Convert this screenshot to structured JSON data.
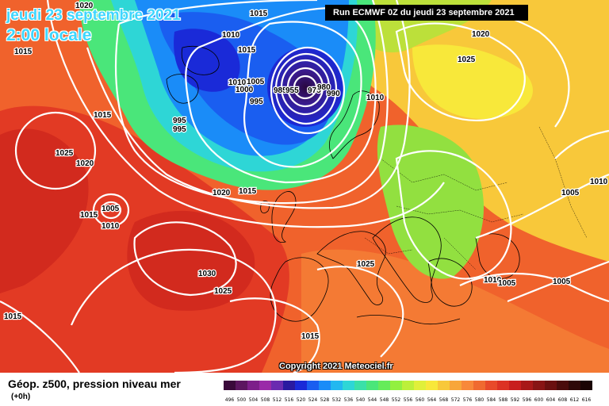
{
  "header": {
    "date": "jeudi 23 septembre 2021",
    "time": "2:00 locale",
    "run": "Run ECMWF 0Z du jeudi 23 septembre 2021"
  },
  "copyright": "Copyright 2021 Meteociel.fr",
  "footer": {
    "title": "Géop. z500, pression niveau mer",
    "subtitle": "(+0h)"
  },
  "scale": {
    "labels": [
      "496",
      "500",
      "504",
      "508",
      "512",
      "516",
      "520",
      "524",
      "528",
      "532",
      "536",
      "540",
      "544",
      "548",
      "552",
      "556",
      "560",
      "564",
      "568",
      "572",
      "576",
      "580",
      "584",
      "588",
      "592",
      "596",
      "600",
      "604",
      "608",
      "612",
      "616"
    ],
    "colors": [
      "#3a0a3a",
      "#5c1660",
      "#7d1f8a",
      "#9a2aa8",
      "#6a2bb0",
      "#2a1aa0",
      "#1a2ad8",
      "#1a5ef0",
      "#1a8cf8",
      "#22b8f0",
      "#2ed6d6",
      "#3ae0a8",
      "#4ae67a",
      "#66ec5a",
      "#92f040",
      "#bcf03a",
      "#e0f03a",
      "#f8e83a",
      "#f8c83a",
      "#f8a63a",
      "#f8883a",
      "#f06a30",
      "#e84a2a",
      "#dc3224",
      "#c81e1e",
      "#a81818",
      "#881414",
      "#6a1010",
      "#4a0c0c",
      "#2e0808",
      "#1a0404"
    ]
  },
  "map": {
    "pressure_labels": [
      {
        "text": "1020"
      },
      {
        "text": "1015"
      },
      {
        "text": "1010"
      },
      {
        "text": "1015"
      },
      {
        "text": "1015"
      },
      {
        "text": "1010"
      },
      {
        "text": "1005"
      },
      {
        "text": "1000"
      },
      {
        "text": "995"
      },
      {
        "text": "995"
      },
      {
        "text": "995"
      },
      {
        "text": "985"
      },
      {
        "text": "955"
      },
      {
        "text": "975"
      },
      {
        "text": "980"
      },
      {
        "text": "990"
      },
      {
        "text": "1010"
      },
      {
        "text": "1020"
      },
      {
        "text": "1025"
      },
      {
        "text": "1015"
      },
      {
        "text": "1025"
      },
      {
        "text": "1020"
      },
      {
        "text": "1020"
      },
      {
        "text": "1015"
      },
      {
        "text": "1005"
      },
      {
        "text": "1015"
      },
      {
        "text": "1010"
      },
      {
        "text": "1030"
      },
      {
        "text": "1025"
      },
      {
        "text": "1025"
      },
      {
        "text": "1015"
      },
      {
        "text": "1015"
      },
      {
        "text": "1010"
      },
      {
        "text": "1005"
      },
      {
        "text": "1005"
      },
      {
        "text": "1005"
      },
      {
        "text": "1010"
      }
    ]
  }
}
